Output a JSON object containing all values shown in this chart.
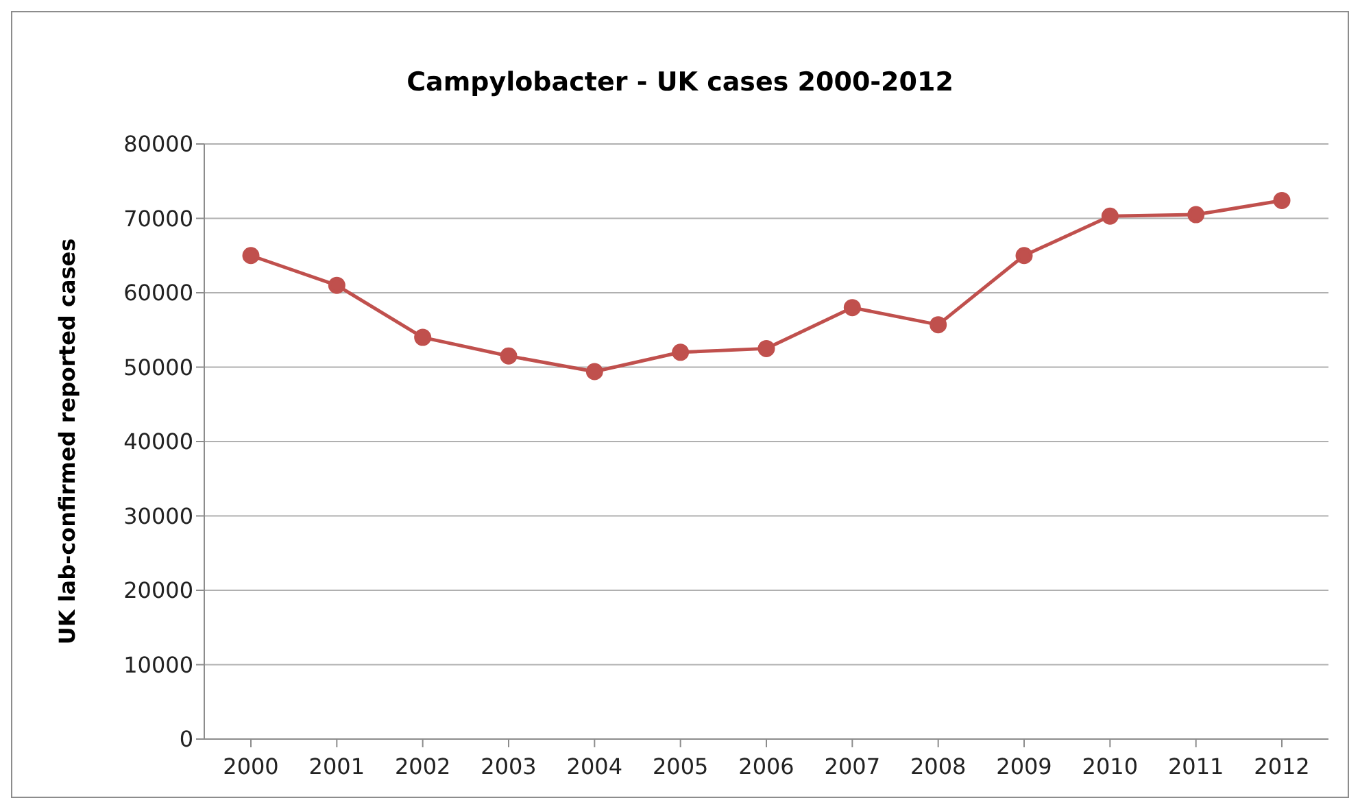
{
  "chart_data": {
    "type": "line",
    "title": "Campylobacter - UK cases 2000-2012",
    "ylabel": "UK lab-confirmed reported cases",
    "categories": [
      "2000",
      "2001",
      "2002",
      "2003",
      "2004",
      "2005",
      "2006",
      "2007",
      "2008",
      "2009",
      "2010",
      "2011",
      "2012"
    ],
    "series": [
      {
        "color": "#c0504d",
        "values": [
          65000,
          61000,
          54000,
          51500,
          49400,
          52000,
          52500,
          58000,
          55700,
          65000,
          70300,
          70500,
          72400
        ]
      }
    ],
    "ylim": [
      0,
      80000
    ],
    "yticks": [
      0,
      10000,
      20000,
      30000,
      40000,
      50000,
      60000,
      70000,
      80000
    ],
    "grid": "y",
    "marker": "circle",
    "line_style": "solid",
    "legend": false
  }
}
